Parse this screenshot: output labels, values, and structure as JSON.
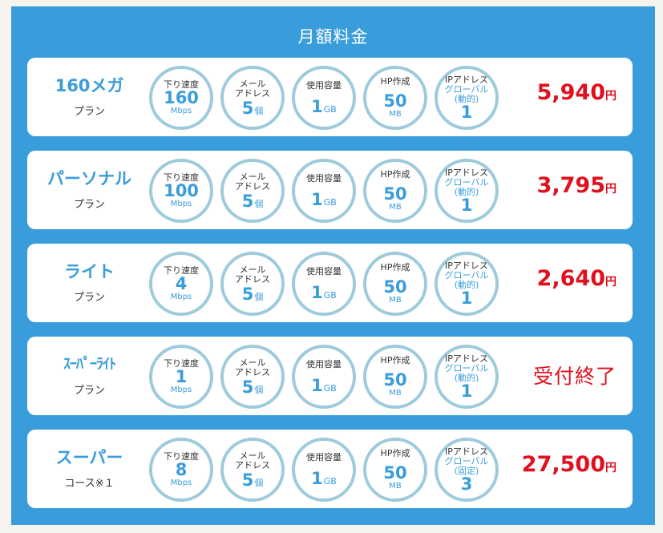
{
  "title": "月額料金",
  "plans": [
    {
      "name": "160メガ",
      "sub": "プラン",
      "speed": {
        "label": "下り速度",
        "value": "160",
        "unit": "Mbps"
      },
      "mail": {
        "label": "メール\nアドレス",
        "value": "5",
        "unit": "個"
      },
      "storage": {
        "label": "使用容量",
        "value": "1",
        "unit": "GB"
      },
      "hp": {
        "label": "HP作成",
        "value": "50",
        "unit": "MB"
      },
      "ip": {
        "label": "IPアドレス",
        "sub1": "グローバル",
        "sub2": "(動的)",
        "value": "1"
      },
      "price": "5,940",
      "yen": "円"
    },
    {
      "name": "パーソナル",
      "sub": "プラン",
      "speed": {
        "label": "下り速度",
        "value": "100",
        "unit": "Mbps"
      },
      "mail": {
        "label": "メール\nアドレス",
        "value": "5",
        "unit": "個"
      },
      "storage": {
        "label": "使用容量",
        "value": "1",
        "unit": "GB"
      },
      "hp": {
        "label": "HP作成",
        "value": "50",
        "unit": "MB"
      },
      "ip": {
        "label": "IPアドレス",
        "sub1": "グローバル",
        "sub2": "(動的)",
        "value": "1"
      },
      "price": "3,795",
      "yen": "円"
    },
    {
      "name": "ライト",
      "sub": "プラン",
      "speed": {
        "label": "下り速度",
        "value": "4",
        "unit": "Mbps"
      },
      "mail": {
        "label": "メール\nアドレス",
        "value": "5",
        "unit": "個"
      },
      "storage": {
        "label": "使用容量",
        "value": "1",
        "unit": "GB"
      },
      "hp": {
        "label": "HP作成",
        "value": "50",
        "unit": "MB"
      },
      "ip": {
        "label": "IPアドレス",
        "sub1": "グローバル",
        "sub2": "(動的)",
        "value": "1"
      },
      "price": "2,640",
      "yen": "円"
    },
    {
      "name": "ｽｰﾊﾟｰﾗｲﾄ",
      "sub": "プラン",
      "speed": {
        "label": "下り速度",
        "value": "1",
        "unit": "Mbps"
      },
      "mail": {
        "label": "メール\nアドレス",
        "value": "5",
        "unit": "個"
      },
      "storage": {
        "label": "使用容量",
        "value": "1",
        "unit": "GB"
      },
      "hp": {
        "label": "HP作成",
        "value": "50",
        "unit": "MB"
      },
      "ip": {
        "label": "IPアドレス",
        "sub1": "グローバル",
        "sub2": "(動的)",
        "value": "1"
      },
      "closed": "受付終了"
    },
    {
      "name": "スーパー",
      "sub": "コース※１",
      "speed": {
        "label": "下り速度",
        "value": "8",
        "unit": "Mbps"
      },
      "mail": {
        "label": "メール\nアドレス",
        "value": "5",
        "unit": "個"
      },
      "storage": {
        "label": "使用容量",
        "value": "1",
        "unit": "GB"
      },
      "hp": {
        "label": "HP作成",
        "value": "50",
        "unit": "MB"
      },
      "ip": {
        "label": "IPアドレス",
        "sub1": "グローバル",
        "sub2": "(固定)",
        "value": "3"
      },
      "price": "27,500",
      "yen": "円"
    }
  ],
  "colors": {
    "panel": "#3a9ddb",
    "accent": "#3a9ddb",
    "price": "#e0101e",
    "ring": "#9ecbdc"
  }
}
